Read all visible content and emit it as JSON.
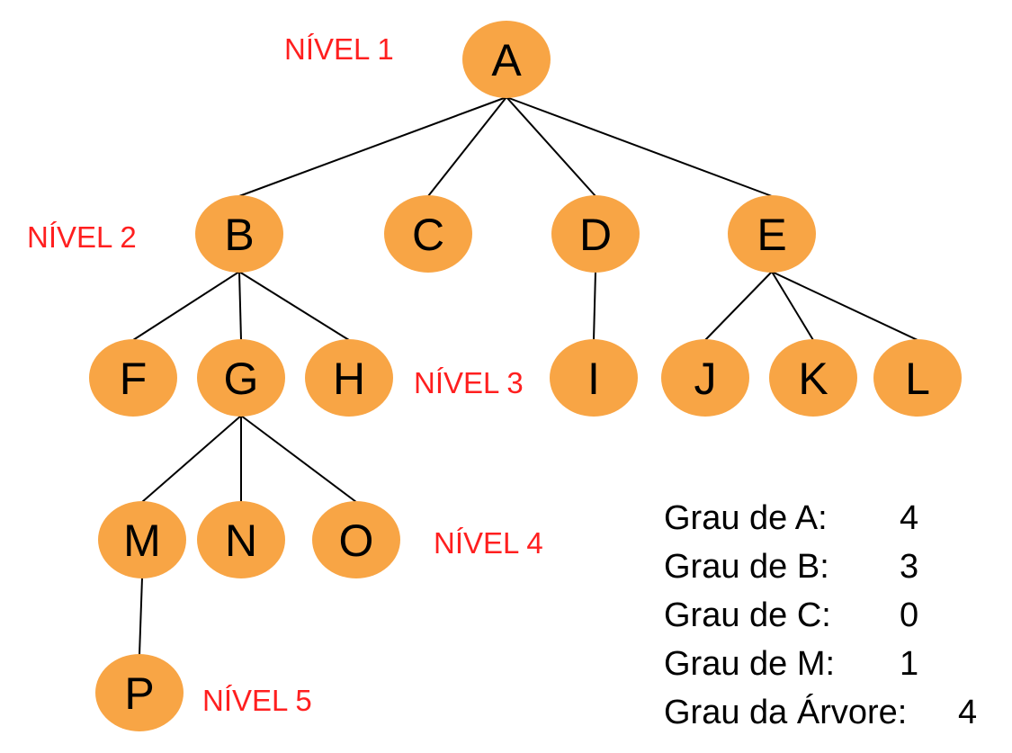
{
  "colors": {
    "node_fill": "#f8a545",
    "edge": "#000000",
    "level_text": "#ff1f1f",
    "node_text": "#000000"
  },
  "nodes": {
    "A": "A",
    "B": "B",
    "C": "C",
    "D": "D",
    "E": "E",
    "F": "F",
    "G": "G",
    "H": "H",
    "I": "I",
    "J": "J",
    "K": "K",
    "L": "L",
    "M": "M",
    "N": "N",
    "O": "O",
    "P": "P"
  },
  "edges": [
    [
      "A",
      "B"
    ],
    [
      "A",
      "C"
    ],
    [
      "A",
      "D"
    ],
    [
      "A",
      "E"
    ],
    [
      "B",
      "F"
    ],
    [
      "B",
      "G"
    ],
    [
      "B",
      "H"
    ],
    [
      "D",
      "I"
    ],
    [
      "E",
      "J"
    ],
    [
      "E",
      "K"
    ],
    [
      "E",
      "L"
    ],
    [
      "G",
      "M"
    ],
    [
      "G",
      "N"
    ],
    [
      "G",
      "O"
    ],
    [
      "M",
      "P"
    ]
  ],
  "levels": {
    "l1": "NÍVEL 1",
    "l2": "NÍVEL 2",
    "l3": "NÍVEL 3",
    "l4": "NÍVEL 4",
    "l5": "NÍVEL 5"
  },
  "degrees": [
    {
      "label": "Grau de A:",
      "value": "4"
    },
    {
      "label": "Grau de B:",
      "value": "3"
    },
    {
      "label": "Grau de C:",
      "value": "0"
    },
    {
      "label": "Grau de M:",
      "value": "1"
    }
  ],
  "tree_degree": {
    "label": "Grau da Árvore:",
    "value": "4"
  }
}
